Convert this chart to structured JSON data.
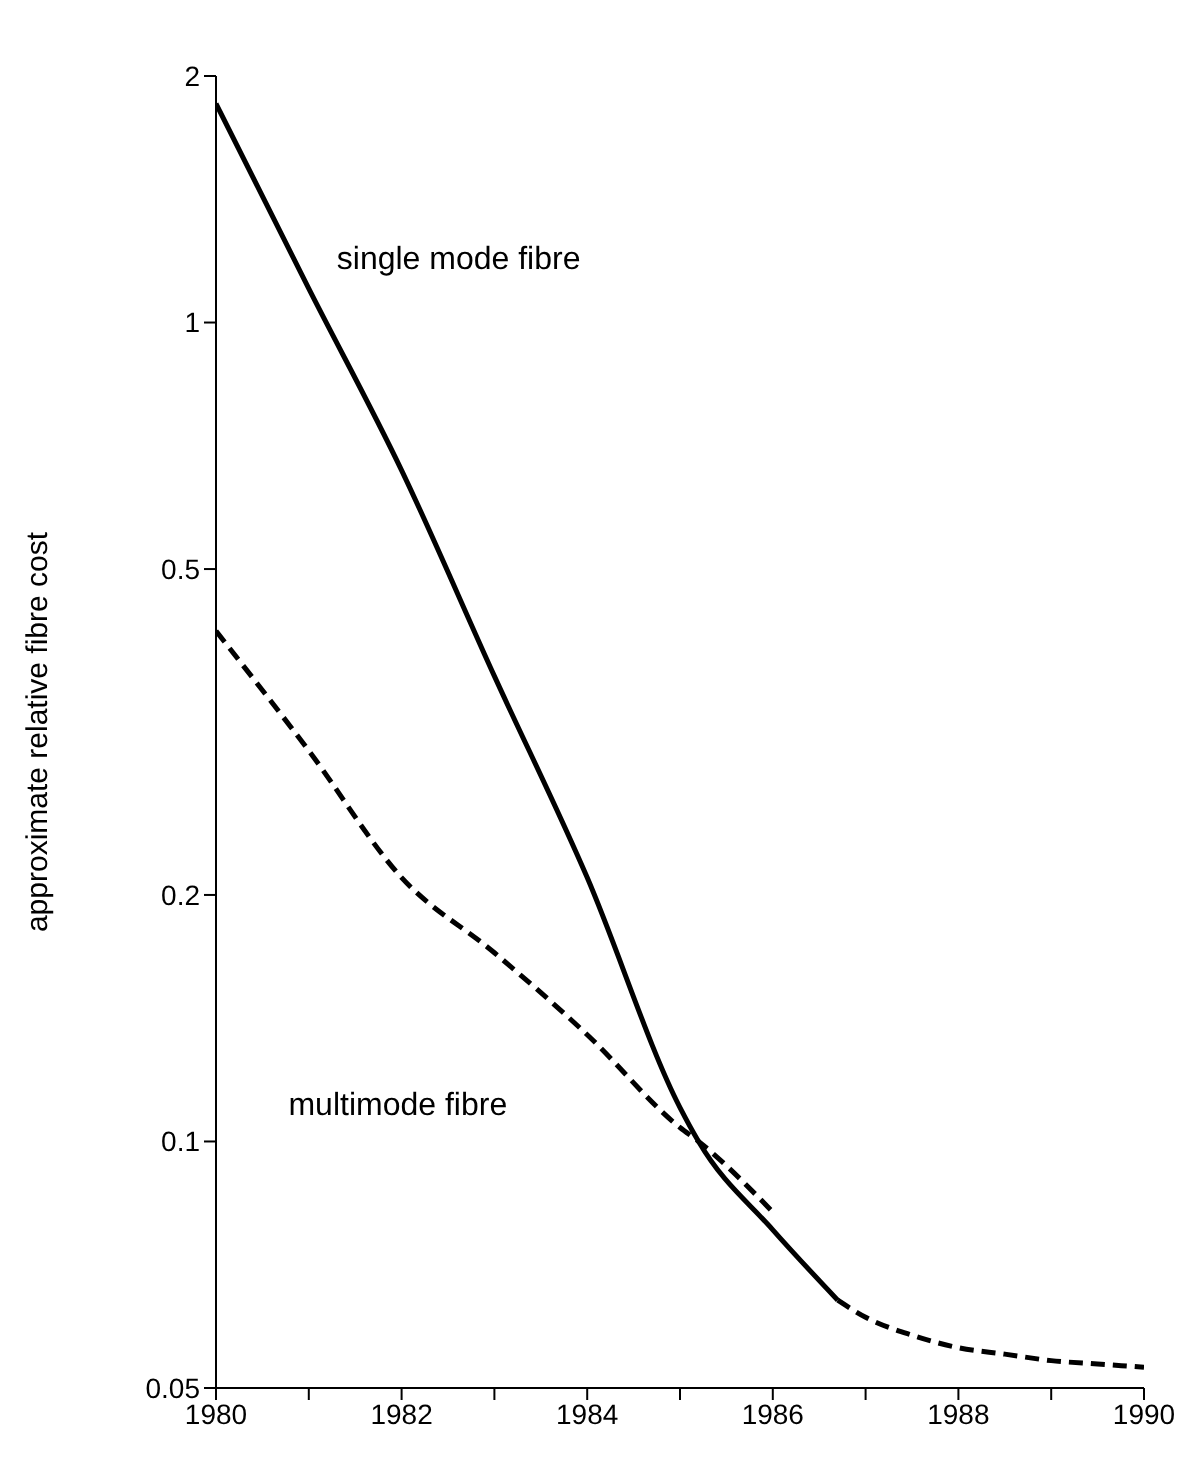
{
  "chart_data": {
    "type": "line",
    "ylabel": "approximate relative fibre cost",
    "log": "y",
    "marker": "none",
    "x": [
      1980,
      1981,
      1982,
      1983,
      1984,
      1985,
      1985.2,
      1986,
      1986.7
    ],
    "xlim": [
      1980,
      1990
    ],
    "xticks": [
      1980,
      {
        "value": 1981,
        "label": null
      },
      1982,
      {
        "value": 1983,
        "label": null
      },
      1984,
      {
        "value": 1985,
        "label": null
      },
      1986,
      {
        "value": 1987,
        "label": null
      },
      1988,
      {
        "value": 1989,
        "label": null
      },
      1990
    ],
    "ylim": [
      0.05,
      2
    ],
    "yticks": [
      0.05,
      0.1,
      0.2,
      0.5,
      1,
      2
    ],
    "series": [
      {
        "name": "single mode fibre",
        "color": "#000000",
        "line_style": "solid",
        "values": [
          1.85,
          1.1,
          0.66,
          0.37,
          0.21,
          0.11,
          0.1,
          0.078,
          0.064
        ]
      },
      {
        "color": "#000000",
        "line_style": "dashed",
        "x": [
          1986.7,
          1987,
          1987.5,
          1988,
          1988.5,
          1989,
          1989.5,
          1990
        ],
        "values": [
          0.064,
          0.061,
          0.058,
          0.056,
          0.055,
          0.054,
          0.0535,
          0.053
        ]
      },
      {
        "name": "multimode fibre",
        "color": "#000000",
        "line_style": "dashed",
        "x": [
          1980,
          1981,
          1982,
          1983,
          1984,
          1985,
          1985.2,
          1986
        ],
        "values": [
          0.42,
          0.3,
          0.21,
          0.17,
          0.135,
          0.104,
          0.1,
          0.082
        ]
      }
    ]
  }
}
